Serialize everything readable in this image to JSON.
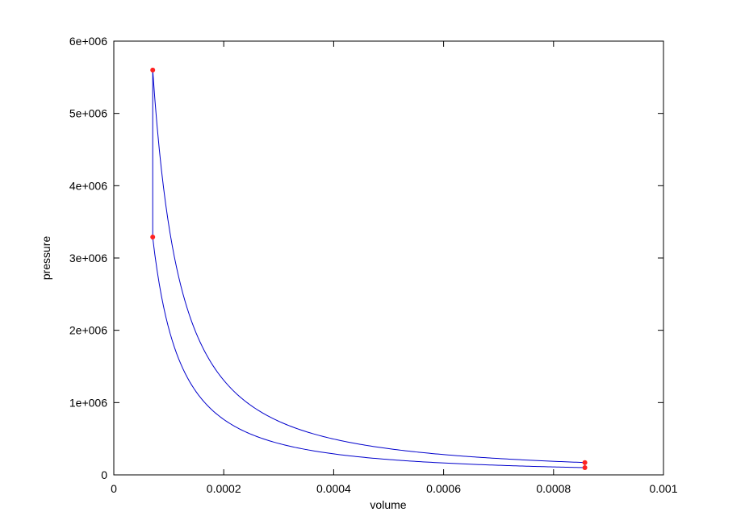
{
  "chart_data": {
    "type": "line",
    "title": "",
    "xlabel": "volume",
    "ylabel": "pressure",
    "xlim": [
      0,
      0.001
    ],
    "ylim": [
      0,
      6000000
    ],
    "x_ticks": [
      0,
      0.0002,
      0.0004,
      0.0006,
      0.0008,
      0.001
    ],
    "x_tick_labels": [
      "0",
      "0.0002",
      "0.0004",
      "0.0006",
      "0.0008",
      "0.001"
    ],
    "y_ticks": [
      0,
      1000000,
      2000000,
      3000000,
      4000000,
      5000000,
      6000000
    ],
    "y_tick_labels": [
      "0",
      "1e+006",
      "2e+006",
      "3e+006",
      "4e+006",
      "5e+006",
      "6e+006"
    ],
    "grid": false,
    "legend": "none",
    "series": [
      {
        "kind": "compression-curve",
        "x_range": [
          7.08e-05,
          0.000857
        ],
        "law": "p * V^gamma = const",
        "gamma": 1.4,
        "start": [
          0.000857,
          100000
        ],
        "end": [
          7.08e-05,
          3290000
        ],
        "color": "#0000cc"
      },
      {
        "kind": "heat-addition",
        "x": [
          7.08e-05,
          7.08e-05
        ],
        "y": [
          3290000,
          5600000
        ],
        "color": "#0000cc"
      },
      {
        "kind": "expansion-curve",
        "x_range": [
          7.08e-05,
          0.000857
        ],
        "law": "p * V^gamma = const",
        "gamma": 1.4,
        "start": [
          7.08e-05,
          5600000
        ],
        "end": [
          0.000857,
          170000
        ],
        "color": "#0000cc"
      },
      {
        "kind": "heat-rejection",
        "x": [
          0.000857,
          0.000857
        ],
        "y": [
          170000,
          100000
        ],
        "color": "#0000cc"
      }
    ],
    "points": {
      "x": [
        7.08e-05,
        7.08e-05,
        0.000857,
        0.000857
      ],
      "y": [
        5600000,
        3290000,
        170000,
        100000
      ],
      "color": "#ff2222"
    },
    "axis_color": "#000000"
  }
}
